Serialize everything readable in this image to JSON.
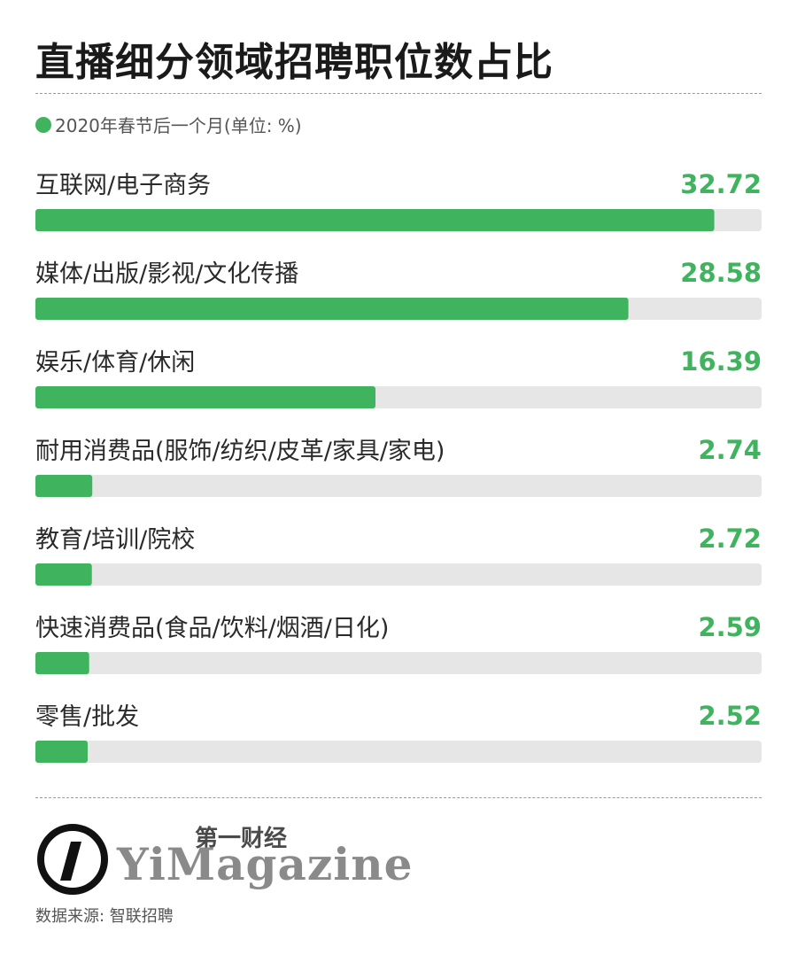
{
  "header": {
    "title": "直播细分领域招聘职位数占比",
    "subtitle": "2020年春节后一个月(单位: %)"
  },
  "colors": {
    "bar": "#40b35f",
    "track": "#e6e6e6",
    "value": "#40b35f",
    "legend_dot": "#40b35f"
  },
  "chart_data": {
    "type": "bar",
    "orientation": "horizontal",
    "title": "直播细分领域招聘职位数占比",
    "subtitle": "2020年春节后一个月(单位: %)",
    "categories": [
      "互联网/电子商务",
      "媒体/出版/影视/文化传播",
      "娱乐/体育/休闲",
      "耐用消费品(服饰/纺织/皮革/家具/家电)",
      "教育/培训/院校",
      "快速消费品(食品/饮料/烟酒/日化)",
      "零售/批发"
    ],
    "values": [
      32.72,
      28.58,
      16.39,
      2.74,
      2.72,
      2.59,
      2.52
    ],
    "value_labels": [
      "32.72",
      "28.58",
      "16.39",
      "2.74",
      "2.72",
      "2.59",
      "2.52"
    ],
    "xlim": [
      0,
      35
    ]
  },
  "branding": {
    "logo_cn": "第一财经",
    "logo_en": "YiMagazine",
    "logo_icon": "yi-circle-logo-icon"
  },
  "footer": {
    "source": "数据来源: 智联招聘"
  }
}
